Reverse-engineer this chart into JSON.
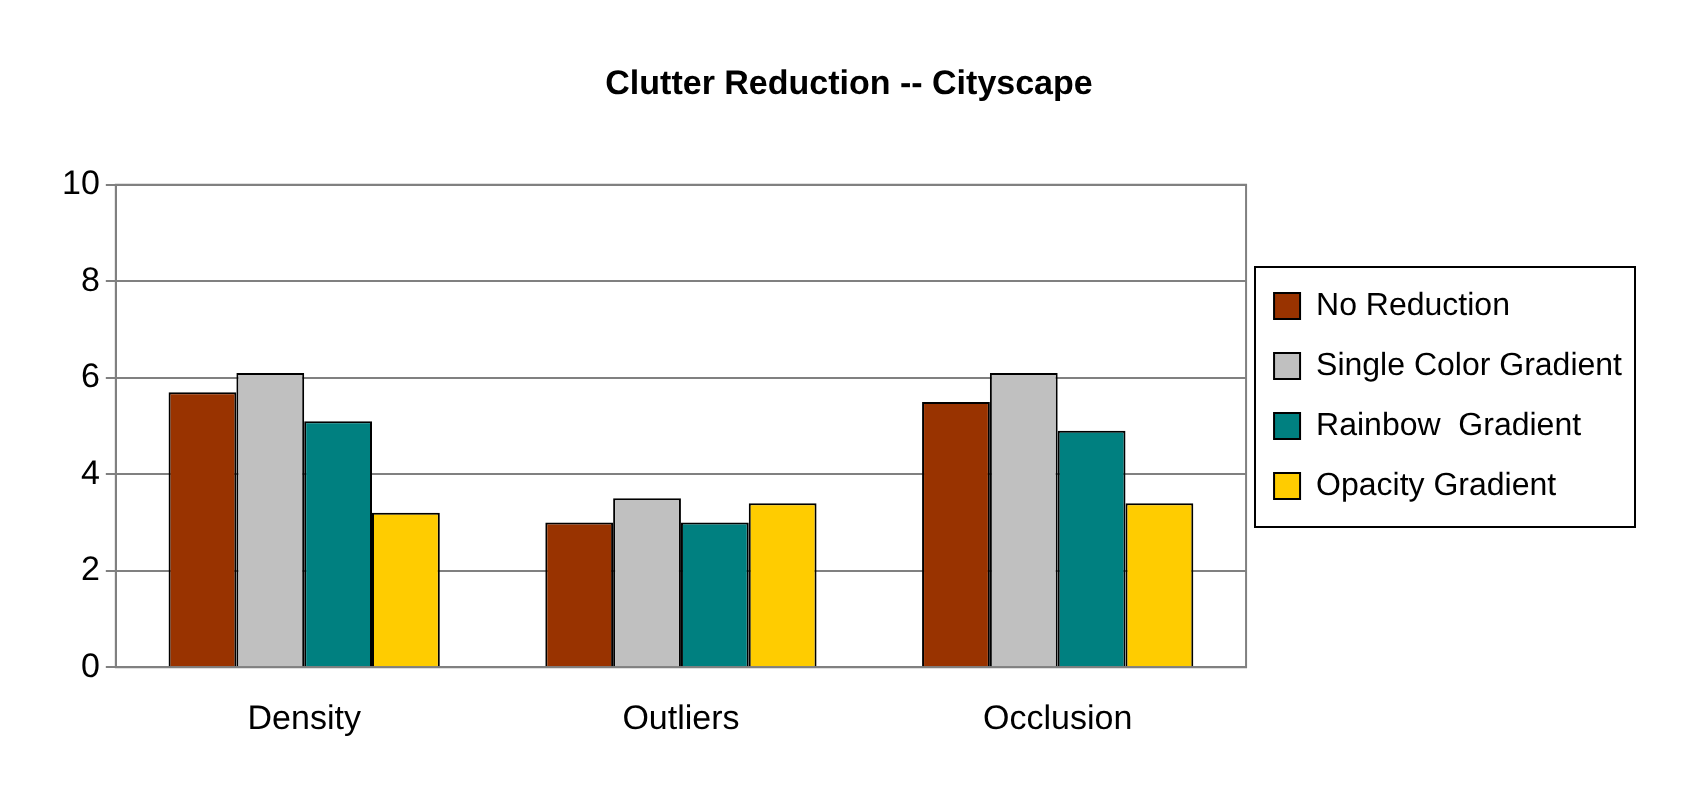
{
  "chart_data": {
    "type": "bar",
    "title": "Clutter Reduction -- Cityscape",
    "categories": [
      "Density",
      "Outliers",
      "Occlusion"
    ],
    "series": [
      {
        "name": "No Reduction",
        "color": "#993300",
        "values": [
          5.7,
          3.0,
          5.5
        ]
      },
      {
        "name": "Single Color Gradient",
        "color": "#c0c0c0",
        "values": [
          6.1,
          3.5,
          6.1
        ]
      },
      {
        "name": "Rainbow  Gradient",
        "color": "#008080",
        "values": [
          5.1,
          3.0,
          4.9
        ]
      },
      {
        "name": "Opacity Gradient",
        "color": "#ffcc00",
        "values": [
          3.2,
          3.4,
          3.4
        ]
      }
    ],
    "ylim": [
      0,
      10
    ],
    "yticks": [
      0,
      2,
      4,
      6,
      8,
      10
    ],
    "grid": "y",
    "legend": "right"
  }
}
